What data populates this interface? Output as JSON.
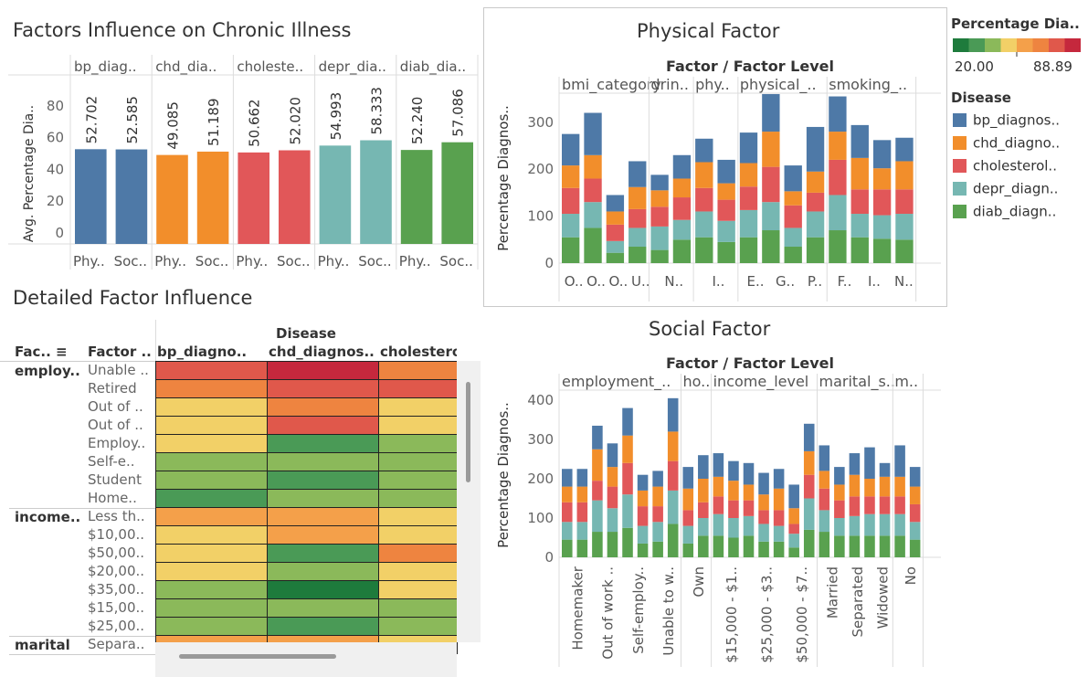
{
  "titles": {
    "top_left": "Factors Influence on Chronic Illness",
    "physical": "Physical Factor",
    "detailed": "Detailed Factor Influence",
    "social": "Social Factor"
  },
  "color_legend": {
    "title": "Percentage Dia..",
    "min": "20.00",
    "max": "88.89",
    "colors": [
      "#1e7b3c",
      "#4a9a56",
      "#8bb95a",
      "#f2d067",
      "#f4a04a",
      "#ee8440",
      "#e0584b",
      "#c5283d"
    ]
  },
  "disease_legend": {
    "title": "Disease",
    "items": [
      {
        "label": "bp_diagnos..",
        "color": "#4e79a7"
      },
      {
        "label": "chd_diagno..",
        "color": "#f28e2b"
      },
      {
        "label": "cholesterol..",
        "color": "#e15759"
      },
      {
        "label": "depr_diagn..",
        "color": "#76b7b2"
      },
      {
        "label": "diab_diagn..",
        "color": "#59a14f"
      }
    ]
  },
  "chart_data": [
    {
      "type": "bar",
      "id": "factors-influence",
      "title": "Factors Influence on Chronic Illness",
      "ylabel": "Avg. Percentage Dia..",
      "ylim": [
        0,
        100
      ],
      "yticks": [
        0,
        20,
        40,
        60,
        80
      ],
      "groups": [
        "bp_diag..",
        "chd_dia..",
        "choleste..",
        "depr_dia..",
        "diab_dia.."
      ],
      "categories": [
        "Phy..",
        "Soc.."
      ],
      "colors": [
        "#4e79a7",
        "#f28e2b",
        "#e15759",
        "#76b7b2",
        "#59a14f"
      ],
      "series": [
        {
          "group": "bp_diag..",
          "values": [
            52.702,
            52.585
          ],
          "labels": [
            "52.702",
            "52.585"
          ]
        },
        {
          "group": "chd_dia..",
          "values": [
            49.085,
            51.189
          ],
          "labels": [
            "49.085",
            "51.189"
          ]
        },
        {
          "group": "choleste..",
          "values": [
            50.662,
            52.02
          ],
          "labels": [
            "50.662",
            "52.020"
          ]
        },
        {
          "group": "depr_dia..",
          "values": [
            54.993,
            58.333
          ],
          "labels": [
            "54.993",
            "58.333"
          ]
        },
        {
          "group": "diab_dia..",
          "values": [
            52.24,
            57.086
          ],
          "labels": [
            "52.240",
            "57.086"
          ]
        }
      ]
    },
    {
      "type": "bar",
      "stacked": true,
      "id": "physical-factor",
      "title": "Physical Factor",
      "header": "Factor  /  Factor Level",
      "ylabel": "Percentage Diagnos..",
      "ylim": [
        0,
        370
      ],
      "yticks": [
        0,
        100,
        200,
        300
      ],
      "groups": [
        {
          "label": "bmi_category",
          "bars": 4,
          "tick_labels": [
            "O..",
            "O..",
            "O..",
            "U.."
          ]
        },
        {
          "label": "drin..",
          "bars": 2,
          "tick_labels": [
            "N.."
          ]
        },
        {
          "label": "phy..",
          "bars": 2,
          "tick_labels": [
            "I.."
          ]
        },
        {
          "label": "physical_..",
          "bars": 4,
          "tick_labels": [
            "E..",
            "G..",
            "P.."
          ]
        },
        {
          "label": "smoking_..",
          "bars": 4,
          "tick_labels": [
            "F..",
            "I..",
            "N.."
          ]
        }
      ],
      "series_order": [
        "diab",
        "depr",
        "cholesterol",
        "chd",
        "bp"
      ],
      "bars": [
        [
          55,
          50,
          55,
          48,
          67
        ],
        [
          75,
          55,
          50,
          50,
          90
        ],
        [
          22,
          25,
          35,
          28,
          35
        ],
        [
          35,
          40,
          40,
          47,
          55
        ],
        [
          28,
          50,
          42,
          35,
          33
        ],
        [
          50,
          42,
          48,
          40,
          50
        ],
        [
          55,
          55,
          50,
          55,
          50
        ],
        [
          45,
          45,
          45,
          35,
          50
        ],
        [
          55,
          58,
          50,
          50,
          65
        ],
        [
          70,
          60,
          75,
          75,
          80
        ],
        [
          35,
          40,
          48,
          30,
          55
        ],
        [
          55,
          55,
          40,
          45,
          95
        ],
        [
          70,
          75,
          75,
          60,
          75
        ],
        [
          55,
          50,
          52,
          67,
          70
        ],
        [
          52,
          50,
          55,
          45,
          60
        ],
        [
          50,
          55,
          52,
          60,
          50
        ],
        [
          45,
          40,
          50,
          40,
          35
        ]
      ]
    },
    {
      "type": "heatmap",
      "id": "detailed-factor-influence",
      "title": "Detailed Factor Influence",
      "column_header": "Disease",
      "columns": [
        "bp_diagno..",
        "chd_diagnos..",
        "cholestero"
      ],
      "row_headers": [
        "Fac..",
        "Factor .."
      ],
      "row_groups": [
        {
          "label": "employ..",
          "rows": [
            {
              "level": "Unable ..",
              "colors": [
                "#e0584b",
                "#c5283d",
                "#ee8440"
              ]
            },
            {
              "level": "Retired",
              "colors": [
                "#ee8440",
                "#e0584b",
                "#e0584b"
              ]
            },
            {
              "level": "Out of ..",
              "colors": [
                "#f2d067",
                "#ee8440",
                "#f2d067"
              ]
            },
            {
              "level": "Out of ..",
              "colors": [
                "#f2d067",
                "#e0584b",
                "#f2d067"
              ]
            },
            {
              "level": "Employ..",
              "colors": [
                "#f2d067",
                "#4a9a56",
                "#8bb95a"
              ]
            },
            {
              "level": "Self-e..",
              "colors": [
                "#8bb95a",
                "#8bb95a",
                "#8bb95a"
              ]
            },
            {
              "level": "Student",
              "colors": [
                "#8bb95a",
                "#4a9a56",
                "#8bb95a"
              ]
            },
            {
              "level": "Home..",
              "colors": [
                "#4a9a56",
                "#8bb95a",
                "#8bb95a"
              ]
            }
          ]
        },
        {
          "label": "income..",
          "rows": [
            {
              "level": "Less th..",
              "colors": [
                "#f4a04a",
                "#f4a04a",
                "#f2d067"
              ]
            },
            {
              "level": "$10,00..",
              "colors": [
                "#f2d067",
                "#f4a04a",
                "#f2d067"
              ]
            },
            {
              "level": "$50,00..",
              "colors": [
                "#f2d067",
                "#4a9a56",
                "#ee8440"
              ]
            },
            {
              "level": "$20,00..",
              "colors": [
                "#f2d067",
                "#8bb95a",
                "#f2d067"
              ]
            },
            {
              "level": "$35,00..",
              "colors": [
                "#8bb95a",
                "#1e7b3c",
                "#f2d067"
              ]
            },
            {
              "level": "$15,00..",
              "colors": [
                "#8bb95a",
                "#8bb95a",
                "#8bb95a"
              ]
            },
            {
              "level": "$25,00..",
              "colors": [
                "#8bb95a",
                "#4a9a56",
                "#8bb95a"
              ]
            }
          ]
        },
        {
          "label": "marital",
          "rows": [
            {
              "level": "Separa..",
              "colors": [
                "#f4a04a",
                "#f4a04a",
                "#f2d067"
              ]
            }
          ]
        }
      ]
    },
    {
      "type": "bar",
      "stacked": true,
      "id": "social-factor",
      "title": "Social Factor",
      "header": "Factor  /  Factor Level",
      "ylabel": "Percentage Diagnos..",
      "ylim": [
        0,
        420
      ],
      "yticks": [
        0,
        100,
        200,
        300,
        400
      ],
      "groups": [
        {
          "label": "employment_..",
          "bars": 8,
          "tick_labels": [
            "Homemaker",
            "Out of work ..",
            "Self-employ..",
            "Unable to w.."
          ]
        },
        {
          "label": "ho..",
          "bars": 2,
          "tick_labels": [
            "Own"
          ]
        },
        {
          "label": "income_level",
          "bars": 7,
          "tick_labels": [
            "$15,000 - $1..",
            "$25,000 - $3..",
            "$50,000 - $7.."
          ]
        },
        {
          "label": "marital_s..",
          "bars": 5,
          "tick_labels": [
            "Married",
            "Separated",
            "Widowed"
          ]
        },
        {
          "label": "m..",
          "bars": 2,
          "tick_labels": [
            "No"
          ]
        }
      ],
      "series_order": [
        "diab",
        "depr",
        "cholesterol",
        "chd",
        "bp"
      ],
      "bars": [
        [
          45,
          45,
          50,
          40,
          45
        ],
        [
          45,
          45,
          50,
          40,
          45
        ],
        [
          65,
          80,
          50,
          80,
          60
        ],
        [
          65,
          60,
          55,
          50,
          60
        ],
        [
          75,
          85,
          80,
          70,
          70
        ],
        [
          35,
          45,
          50,
          40,
          40
        ],
        [
          40,
          50,
          40,
          50,
          40
        ],
        [
          85,
          85,
          75,
          75,
          85
        ],
        [
          35,
          45,
          40,
          55,
          55
        ],
        [
          55,
          45,
          40,
          60,
          60
        ],
        [
          55,
          55,
          45,
          50,
          60
        ],
        [
          50,
          50,
          45,
          50,
          50
        ],
        [
          55,
          50,
          40,
          40,
          55
        ],
        [
          40,
          45,
          35,
          40,
          55
        ],
        [
          40,
          40,
          40,
          55,
          50
        ],
        [
          25,
          35,
          25,
          40,
          60
        ],
        [
          70,
          80,
          60,
          60,
          70
        ],
        [
          65,
          55,
          55,
          45,
          65
        ],
        [
          55,
          45,
          45,
          40,
          45
        ],
        [
          55,
          50,
          50,
          55,
          55
        ],
        [
          55,
          55,
          45,
          45,
          80
        ],
        [
          55,
          55,
          45,
          50,
          35
        ],
        [
          55,
          55,
          45,
          50,
          80
        ],
        [
          45,
          45,
          45,
          45,
          50
        ],
        [
          55,
          70,
          60,
          60,
          55
        ]
      ]
    }
  ]
}
